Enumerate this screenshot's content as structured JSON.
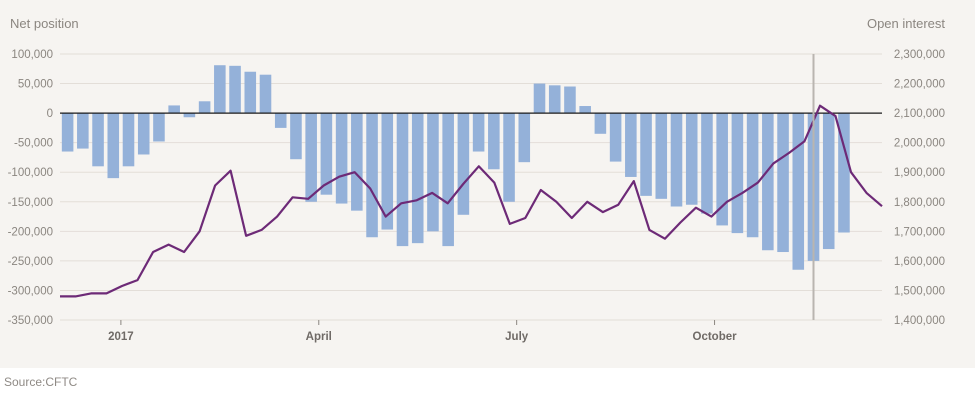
{
  "chart_data": {
    "type": "bar+line",
    "y_left_title": "Net position",
    "y_right_title": "Open interest",
    "y_left_range": [
      -350000,
      100000
    ],
    "y_right_range": [
      1400000,
      2300000
    ],
    "y_left_ticks": [
      100000,
      50000,
      0,
      -50000,
      -100000,
      -150000,
      -200000,
      -250000,
      -300000,
      -350000
    ],
    "y_left_tick_labels": [
      "100,000",
      "50,000",
      "0",
      "-50,000",
      "-100,000",
      "-150,000",
      "-200,000",
      "-250,000",
      "-300,000",
      "-350,000"
    ],
    "y_right_ticks": [
      2300000,
      2200000,
      2100000,
      2000000,
      1900000,
      1800000,
      1700000,
      1600000,
      1500000,
      1400000
    ],
    "y_right_tick_labels": [
      "2,300,000",
      "2,200,000",
      "2,100,000",
      "2,000,000",
      "1,900,000",
      "1,800,000",
      "1,700,000",
      "1,600,000",
      "1,500,000",
      "1,400,000"
    ],
    "x_labels": [
      {
        "label": "2017",
        "index": 4
      },
      {
        "label": "April",
        "index": 17
      },
      {
        "label": "July",
        "index": 30
      },
      {
        "label": "October",
        "index": 43
      }
    ],
    "marker_index": 49.5,
    "bar_color": "#94b1d9",
    "line_color": "#6d2a77",
    "grid": true,
    "bar_series": {
      "name": "Net position",
      "values": [
        -65000,
        -60000,
        -90000,
        -110000,
        -90000,
        -70000,
        -48000,
        13000,
        -7000,
        20000,
        81000,
        80000,
        70000,
        65000,
        -25000,
        -78000,
        -150000,
        -138000,
        -153000,
        -165000,
        -210000,
        -197000,
        -225000,
        -220000,
        -200000,
        -225000,
        -172000,
        -65000,
        -95000,
        -150000,
        -83000,
        50000,
        47000,
        45000,
        12000,
        -35000,
        -82000,
        -108000,
        -140000,
        -145000,
        -158000,
        -155000,
        -170000,
        -190000,
        -203000,
        -210000,
        -232000,
        -235000,
        -265000,
        -250000,
        -230000,
        -202000
      ]
    },
    "line_series": {
      "name": "Open interest",
      "values": [
        1480000,
        1480000,
        1490000,
        1490000,
        1515000,
        1535000,
        1630000,
        1655000,
        1630000,
        1700000,
        1855000,
        1905000,
        1685000,
        1705000,
        1750000,
        1815000,
        1810000,
        1855000,
        1885000,
        1900000,
        1845000,
        1750000,
        1795000,
        1805000,
        1830000,
        1795000,
        1860000,
        1920000,
        1865000,
        1725000,
        1745000,
        1840000,
        1800000,
        1745000,
        1800000,
        1765000,
        1790000,
        1870000,
        1705000,
        1675000,
        1730000,
        1780000,
        1750000,
        1800000,
        1830000,
        1865000,
        1930000,
        1965000,
        2005000,
        2125000,
        2090000,
        1900000,
        1830000,
        1785000
      ]
    }
  },
  "source": "Source:CFTC"
}
